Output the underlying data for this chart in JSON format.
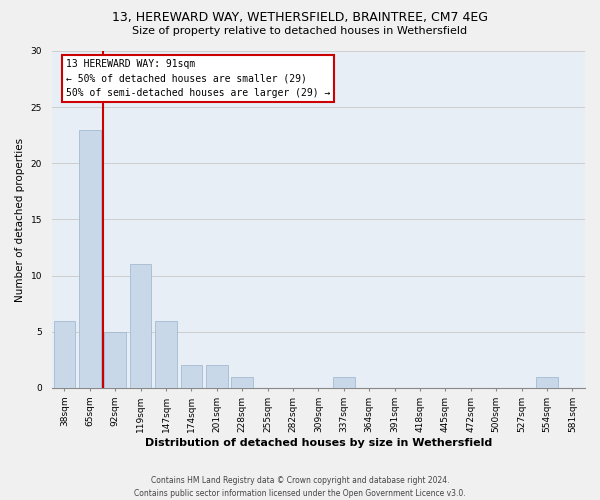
{
  "title_line1": "13, HEREWARD WAY, WETHERSFIELD, BRAINTREE, CM7 4EG",
  "title_line2": "Size of property relative to detached houses in Wethersfield",
  "xlabel": "Distribution of detached houses by size in Wethersfield",
  "ylabel": "Number of detached properties",
  "categories": [
    "38sqm",
    "65sqm",
    "92sqm",
    "119sqm",
    "147sqm",
    "174sqm",
    "201sqm",
    "228sqm",
    "255sqm",
    "282sqm",
    "309sqm",
    "337sqm",
    "364sqm",
    "391sqm",
    "418sqm",
    "445sqm",
    "472sqm",
    "500sqm",
    "527sqm",
    "554sqm",
    "581sqm"
  ],
  "values": [
    6,
    23,
    5,
    11,
    6,
    2,
    2,
    1,
    0,
    0,
    0,
    1,
    0,
    0,
    0,
    0,
    0,
    0,
    0,
    1,
    0
  ],
  "bar_color": "#c8d8e8",
  "bar_edge_color": "#9ab4cc",
  "vline_x_index": 2,
  "vline_color": "#cc0000",
  "annotation_line1": "13 HEREWARD WAY: 91sqm",
  "annotation_line2": "← 50% of detached houses are smaller (29)",
  "annotation_line3": "50% of semi-detached houses are larger (29) →",
  "annotation_box_facecolor": "#ffffff",
  "annotation_box_edgecolor": "#cc0000",
  "ylim": [
    0,
    30
  ],
  "yticks": [
    0,
    5,
    10,
    15,
    20,
    25,
    30
  ],
  "grid_color": "#c8c8c8",
  "plot_bg_color": "#e8eef5",
  "fig_bg_color": "#f0f0f0",
  "footer_line1": "Contains HM Land Registry data © Crown copyright and database right 2024.",
  "footer_line2": "Contains public sector information licensed under the Open Government Licence v3.0.",
  "title1_fontsize": 9,
  "title2_fontsize": 8,
  "ylabel_fontsize": 7.5,
  "xlabel_fontsize": 8,
  "tick_fontsize": 6.5,
  "annotation_fontsize": 7,
  "footer_fontsize": 5.5,
  "bar_width": 0.85
}
